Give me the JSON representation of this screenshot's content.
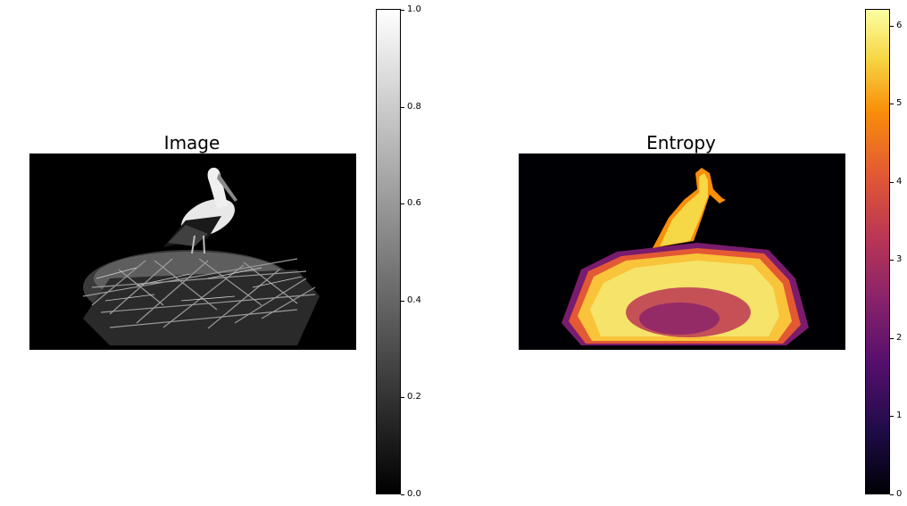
{
  "chart_data": [
    {
      "type": "heatmap",
      "title": "Image",
      "colormap": "gray",
      "colorbar": {
        "range": [
          0.0,
          1.0
        ],
        "ticks": [
          "0.0",
          "0.2",
          "0.4",
          "0.6",
          "0.8",
          "1.0"
        ],
        "tick_values": [
          0.0,
          0.2,
          0.4,
          0.6,
          0.8,
          1.0
        ]
      },
      "content": "grayscale photo of a white stork standing on a large stick nest, black background",
      "axes": "off"
    },
    {
      "type": "heatmap",
      "title": "Entropy",
      "colormap": "inferno",
      "colorbar": {
        "range": [
          0,
          6.2
        ],
        "ticks": [
          "0",
          "1",
          "2",
          "3",
          "4",
          "5",
          "6"
        ],
        "tick_values": [
          0,
          1,
          2,
          3,
          4,
          5,
          6
        ]
      },
      "content": "local entropy map of the stork image; high entropy (yellow) over nest and bird, low (black) over background",
      "axes": "off"
    }
  ],
  "colors": {
    "background": "#ffffff",
    "gray_low": "#000000",
    "gray_high": "#ffffff",
    "inferno_low": "#000004",
    "inferno_mid": "#bc3754",
    "inferno_high": "#fcffa4"
  }
}
